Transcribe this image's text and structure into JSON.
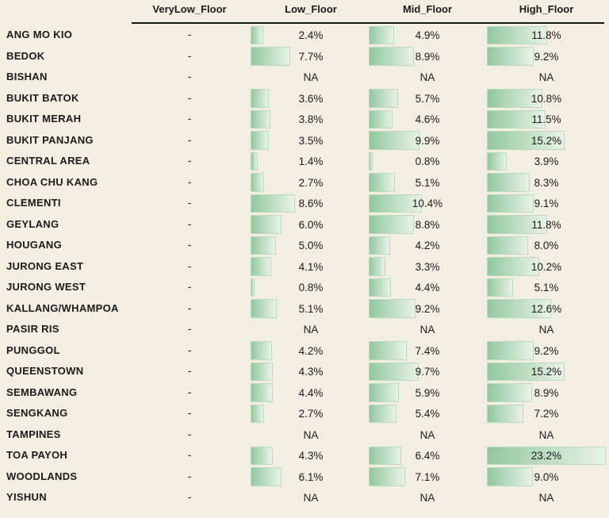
{
  "colors": {
    "background": "#f2eee1",
    "bar_gradient_start": "#93c7a0",
    "bar_gradient_end": "#e9f3e6",
    "bar_border": "#bdd9bd",
    "text": "#1b1b1b",
    "header_rule": "#161616"
  },
  "table": {
    "columns": [
      "VeryLow_Floor",
      "Low_Floor",
      "Mid_Floor",
      "High_Floor"
    ],
    "na_text": "NA",
    "rows": [
      {
        "label": "ANG MO KIO",
        "verylow": "-",
        "low": {
          "value": 2.4,
          "display": "2.4%"
        },
        "mid": {
          "value": 4.9,
          "display": "4.9%"
        },
        "high": {
          "value": 11.8,
          "display": "11.8%"
        }
      },
      {
        "label": "BEDOK",
        "verylow": "-",
        "low": {
          "value": 7.7,
          "display": "7.7%"
        },
        "mid": {
          "value": 8.9,
          "display": "8.9%"
        },
        "high": {
          "value": 9.2,
          "display": "9.2%"
        }
      },
      {
        "label": "BISHAN",
        "verylow": "-",
        "low": {
          "value": null,
          "display": "NA"
        },
        "mid": {
          "value": null,
          "display": "NA"
        },
        "high": {
          "value": null,
          "display": "NA"
        }
      },
      {
        "label": "BUKIT BATOK",
        "verylow": "-",
        "low": {
          "value": 3.6,
          "display": "3.6%"
        },
        "mid": {
          "value": 5.7,
          "display": "5.7%"
        },
        "high": {
          "value": 10.8,
          "display": "10.8%"
        }
      },
      {
        "label": "BUKIT MERAH",
        "verylow": "-",
        "low": {
          "value": 3.8,
          "display": "3.8%"
        },
        "mid": {
          "value": 4.6,
          "display": "4.6%"
        },
        "high": {
          "value": 11.5,
          "display": "11.5%"
        }
      },
      {
        "label": "BUKIT PANJANG",
        "verylow": "-",
        "low": {
          "value": 3.5,
          "display": "3.5%"
        },
        "mid": {
          "value": 9.9,
          "display": "9.9%"
        },
        "high": {
          "value": 15.2,
          "display": "15.2%"
        }
      },
      {
        "label": "CENTRAL AREA",
        "verylow": "-",
        "low": {
          "value": 1.4,
          "display": "1.4%"
        },
        "mid": {
          "value": 0.8,
          "display": "0.8%"
        },
        "high": {
          "value": 3.9,
          "display": "3.9%"
        }
      },
      {
        "label": "CHOA CHU KANG",
        "verylow": "-",
        "low": {
          "value": 2.7,
          "display": "2.7%"
        },
        "mid": {
          "value": 5.1,
          "display": "5.1%"
        },
        "high": {
          "value": 8.3,
          "display": "8.3%"
        }
      },
      {
        "label": "CLEMENTI",
        "verylow": "-",
        "low": {
          "value": 8.6,
          "display": "8.6%"
        },
        "mid": {
          "value": 10.4,
          "display": "10.4%"
        },
        "high": {
          "value": 9.1,
          "display": "9.1%"
        }
      },
      {
        "label": "GEYLANG",
        "verylow": "-",
        "low": {
          "value": 6.0,
          "display": "6.0%"
        },
        "mid": {
          "value": 8.8,
          "display": "8.8%"
        },
        "high": {
          "value": 11.8,
          "display": "11.8%"
        }
      },
      {
        "label": "HOUGANG",
        "verylow": "-",
        "low": {
          "value": 5.0,
          "display": "5.0%"
        },
        "mid": {
          "value": 4.2,
          "display": "4.2%"
        },
        "high": {
          "value": 8.0,
          "display": "8.0%"
        }
      },
      {
        "label": "JURONG EAST",
        "verylow": "-",
        "low": {
          "value": 4.1,
          "display": "4.1%"
        },
        "mid": {
          "value": 3.3,
          "display": "3.3%"
        },
        "high": {
          "value": 10.2,
          "display": "10.2%"
        }
      },
      {
        "label": "JURONG WEST",
        "verylow": "-",
        "low": {
          "value": 0.8,
          "display": "0.8%"
        },
        "mid": {
          "value": 4.4,
          "display": "4.4%"
        },
        "high": {
          "value": 5.1,
          "display": "5.1%"
        }
      },
      {
        "label": "KALLANG/WHAMPOA",
        "verylow": "-",
        "low": {
          "value": 5.1,
          "display": "5.1%"
        },
        "mid": {
          "value": 9.2,
          "display": "9.2%"
        },
        "high": {
          "value": 12.6,
          "display": "12.6%"
        }
      },
      {
        "label": "PASIR RIS",
        "verylow": "-",
        "low": {
          "value": null,
          "display": "NA"
        },
        "mid": {
          "value": null,
          "display": "NA"
        },
        "high": {
          "value": null,
          "display": "NA"
        }
      },
      {
        "label": "PUNGGOL",
        "verylow": "-",
        "low": {
          "value": 4.2,
          "display": "4.2%"
        },
        "mid": {
          "value": 7.4,
          "display": "7.4%"
        },
        "high": {
          "value": 9.2,
          "display": "9.2%"
        }
      },
      {
        "label": "QUEENSTOWN",
        "verylow": "-",
        "low": {
          "value": 4.3,
          "display": "4.3%"
        },
        "mid": {
          "value": 9.7,
          "display": "9.7%"
        },
        "high": {
          "value": 15.2,
          "display": "15.2%"
        }
      },
      {
        "label": "SEMBAWANG",
        "verylow": "-",
        "low": {
          "value": 4.4,
          "display": "4.4%"
        },
        "mid": {
          "value": 5.9,
          "display": "5.9%"
        },
        "high": {
          "value": 8.9,
          "display": "8.9%"
        }
      },
      {
        "label": "SENGKANG",
        "verylow": "-",
        "low": {
          "value": 2.7,
          "display": "2.7%"
        },
        "mid": {
          "value": 5.4,
          "display": "5.4%"
        },
        "high": {
          "value": 7.2,
          "display": "7.2%"
        }
      },
      {
        "label": "TAMPINES",
        "verylow": "-",
        "low": {
          "value": null,
          "display": "NA"
        },
        "mid": {
          "value": null,
          "display": "NA"
        },
        "high": {
          "value": null,
          "display": "NA"
        }
      },
      {
        "label": "TOA PAYOH",
        "verylow": "-",
        "low": {
          "value": 4.3,
          "display": "4.3%"
        },
        "mid": {
          "value": 6.4,
          "display": "6.4%"
        },
        "high": {
          "value": 23.2,
          "display": "23.2%"
        }
      },
      {
        "label": "WOODLANDS",
        "verylow": "-",
        "low": {
          "value": 6.1,
          "display": "6.1%"
        },
        "mid": {
          "value": 7.1,
          "display": "7.1%"
        },
        "high": {
          "value": 9.0,
          "display": "9.0%"
        }
      },
      {
        "label": "YISHUN",
        "verylow": "-",
        "low": {
          "value": null,
          "display": "NA"
        },
        "mid": {
          "value": null,
          "display": "NA"
        },
        "high": {
          "value": null,
          "display": "NA"
        }
      }
    ]
  },
  "chart_data": {
    "type": "table",
    "title": "",
    "note": "Table of percentages per town with inline data bars; '-' shown for VeryLow_Floor, 'NA' for missing values; bars share one linear scale",
    "categories": [
      "ANG MO KIO",
      "BEDOK",
      "BISHAN",
      "BUKIT BATOK",
      "BUKIT MERAH",
      "BUKIT PANJANG",
      "CENTRAL AREA",
      "CHOA CHU KANG",
      "CLEMENTI",
      "GEYLANG",
      "HOUGANG",
      "JURONG EAST",
      "JURONG WEST",
      "KALLANG/WHAMPOA",
      "PASIR RIS",
      "PUNGGOL",
      "QUEENSTOWN",
      "SEMBAWANG",
      "SENGKANG",
      "TAMPINES",
      "TOA PAYOH",
      "WOODLANDS",
      "YISHUN"
    ],
    "series": [
      {
        "name": "VeryLow_Floor",
        "values": [
          null,
          null,
          null,
          null,
          null,
          null,
          null,
          null,
          null,
          null,
          null,
          null,
          null,
          null,
          null,
          null,
          null,
          null,
          null,
          null,
          null,
          null,
          null
        ]
      },
      {
        "name": "Low_Floor",
        "values": [
          2.4,
          7.7,
          null,
          3.6,
          3.8,
          3.5,
          1.4,
          2.7,
          8.6,
          6.0,
          5.0,
          4.1,
          0.8,
          5.1,
          null,
          4.2,
          4.3,
          4.4,
          2.7,
          null,
          4.3,
          6.1,
          null
        ]
      },
      {
        "name": "Mid_Floor",
        "values": [
          4.9,
          8.9,
          null,
          5.7,
          4.6,
          9.9,
          0.8,
          5.1,
          10.4,
          8.8,
          4.2,
          3.3,
          4.4,
          9.2,
          null,
          7.4,
          9.7,
          5.9,
          5.4,
          null,
          6.4,
          7.1,
          null
        ]
      },
      {
        "name": "High_Floor",
        "values": [
          11.8,
          9.2,
          null,
          10.8,
          11.5,
          15.2,
          3.9,
          8.3,
          9.1,
          11.8,
          8.0,
          10.2,
          5.1,
          12.6,
          null,
          9.2,
          15.2,
          8.9,
          7.2,
          null,
          23.2,
          9.0,
          null
        ]
      }
    ],
    "value_unit": "%",
    "bar_scale_max": 23.2,
    "legend_position": "none",
    "grid": false
  }
}
